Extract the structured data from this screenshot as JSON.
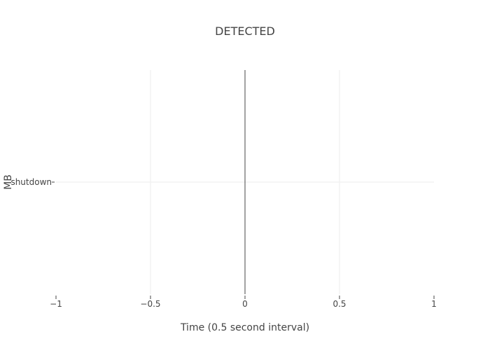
{
  "chart_data": {
    "type": "scatter",
    "title": "DETECTED",
    "xlabel": "Time (0.5 second interval)",
    "ylabel": "MB",
    "xlim": [
      -1,
      1
    ],
    "x_ticks": [
      -1,
      -0.5,
      0,
      0.5,
      1
    ],
    "x_tick_labels": [
      "−1",
      "−0.5",
      "0",
      "0.5",
      "1"
    ],
    "y_categories": [
      "shutdown"
    ],
    "grid": true,
    "zero_line": true,
    "series": []
  }
}
